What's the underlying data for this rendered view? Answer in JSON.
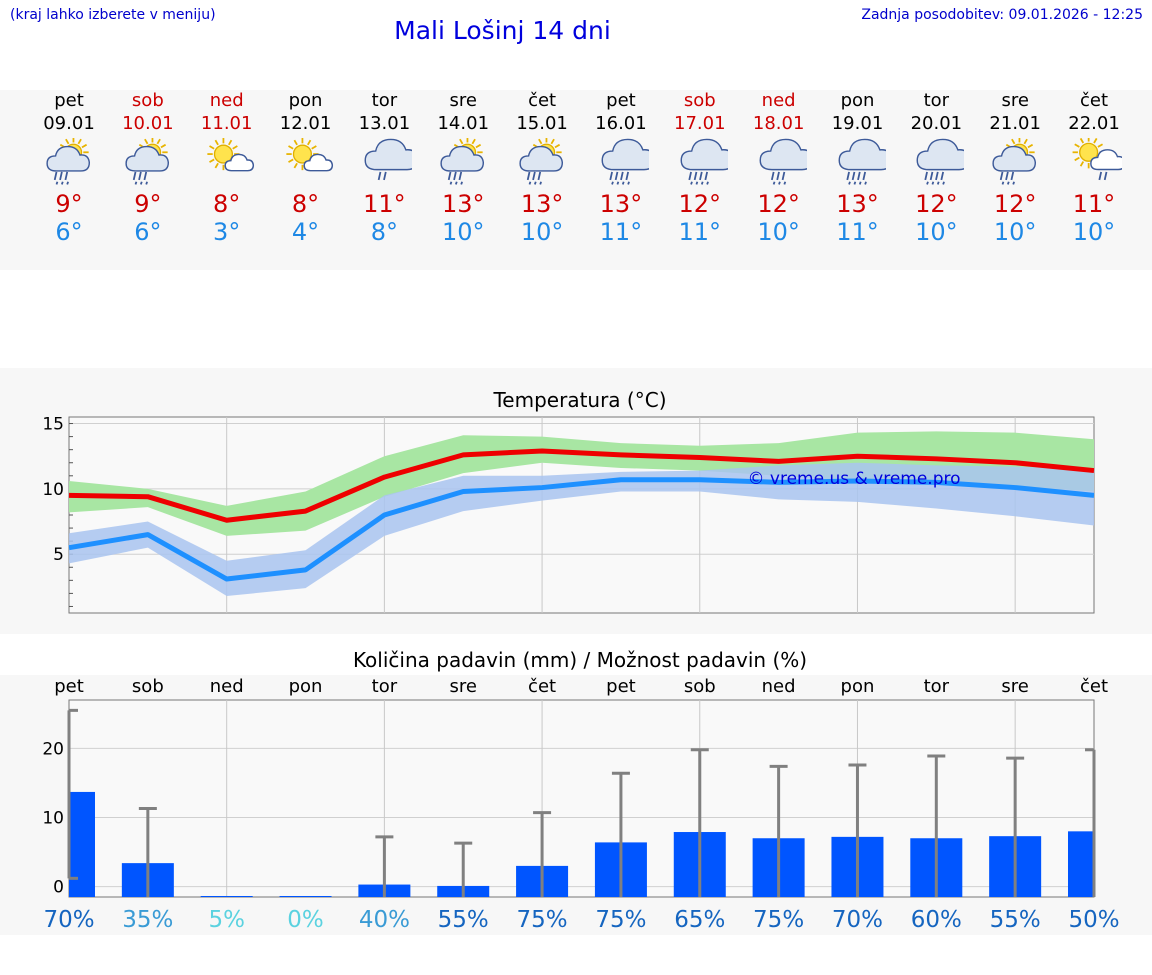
{
  "header": {
    "note": "(kraj lahko izberete v meniju)",
    "title": "Mali Lošinj 14 dni",
    "updated": "Zadnja posodobitev: 09.01.2026 - 12:25"
  },
  "days": [
    {
      "name": "pet",
      "date": "09.01",
      "weekend": false,
      "icon": "sun-cloud-rain-icon",
      "max": "9°",
      "min": "6°"
    },
    {
      "name": "sob",
      "date": "10.01",
      "weekend": true,
      "icon": "sun-cloud-rain-icon",
      "max": "9°",
      "min": "6°"
    },
    {
      "name": "ned",
      "date": "11.01",
      "weekend": true,
      "icon": "sun-small-cloud-icon",
      "max": "8°",
      "min": "3°"
    },
    {
      "name": "pon",
      "date": "12.01",
      "weekend": false,
      "icon": "sun-small-cloud-icon",
      "max": "8°",
      "min": "4°"
    },
    {
      "name": "tor",
      "date": "13.01",
      "weekend": false,
      "icon": "cloud-light-rain-icon",
      "max": "11°",
      "min": "8°"
    },
    {
      "name": "sre",
      "date": "14.01",
      "weekend": false,
      "icon": "sun-cloud-rain-icon",
      "max": "13°",
      "min": "10°"
    },
    {
      "name": "čet",
      "date": "15.01",
      "weekend": false,
      "icon": "sun-cloud-rain-icon",
      "max": "13°",
      "min": "10°"
    },
    {
      "name": "pet",
      "date": "16.01",
      "weekend": false,
      "icon": "cloud-heavy-rain-icon",
      "max": "13°",
      "min": "11°"
    },
    {
      "name": "sob",
      "date": "17.01",
      "weekend": true,
      "icon": "cloud-heavy-rain-icon",
      "max": "12°",
      "min": "11°"
    },
    {
      "name": "ned",
      "date": "18.01",
      "weekend": true,
      "icon": "cloud-rain-icon",
      "max": "12°",
      "min": "10°"
    },
    {
      "name": "pon",
      "date": "19.01",
      "weekend": false,
      "icon": "cloud-heavy-rain-icon",
      "max": "13°",
      "min": "11°"
    },
    {
      "name": "tor",
      "date": "20.01",
      "weekend": false,
      "icon": "cloud-heavy-rain-icon",
      "max": "12°",
      "min": "10°"
    },
    {
      "name": "sre",
      "date": "21.01",
      "weekend": false,
      "icon": "sun-cloud-rain-icon",
      "max": "12°",
      "min": "10°"
    },
    {
      "name": "čet",
      "date": "22.01",
      "weekend": false,
      "icon": "sun-small-cloud-rain-icon",
      "max": "11°",
      "min": "10°"
    }
  ],
  "colors": {
    "max_line": "#ee0000",
    "min_line": "#1e90ff",
    "max_band": "#a8e6a3",
    "min_band": "#a9c4f0",
    "bar": "#0055ff",
    "error_bar": "#808080",
    "weekend": "#cc0000"
  },
  "chart_data": [
    {
      "type": "line",
      "title": "Temperatura (°C)",
      "watermark": "© vreme.us & vreme.pro",
      "ylim": [
        0.5,
        15.5
      ],
      "yticks": [
        5,
        10,
        15
      ],
      "x": [
        0,
        1,
        2,
        3,
        4,
        5,
        6,
        7,
        8,
        9,
        10,
        11,
        12,
        13
      ],
      "series": [
        {
          "name": "max",
          "values": [
            9.5,
            9.4,
            7.6,
            8.3,
            10.9,
            12.6,
            12.9,
            12.6,
            12.4,
            12.1,
            12.5,
            12.3,
            12.0,
            11.4
          ],
          "band_low": [
            8.2,
            8.6,
            6.4,
            6.8,
            9.4,
            11.2,
            12.0,
            11.6,
            11.4,
            11.0,
            10.6,
            10.4,
            10.2,
            9.8
          ],
          "band_high": [
            10.6,
            10.0,
            8.7,
            9.8,
            12.5,
            14.1,
            14.0,
            13.5,
            13.3,
            13.5,
            14.3,
            14.4,
            14.3,
            13.8
          ]
        },
        {
          "name": "min",
          "values": [
            5.5,
            6.5,
            3.1,
            3.8,
            8.0,
            9.8,
            10.1,
            10.7,
            10.7,
            10.5,
            10.6,
            10.5,
            10.1,
            9.5
          ],
          "band_low": [
            4.3,
            5.5,
            1.8,
            2.4,
            6.4,
            8.3,
            9.1,
            9.8,
            9.8,
            9.2,
            9.0,
            8.5,
            7.9,
            7.2
          ],
          "band_high": [
            6.6,
            7.5,
            4.5,
            5.3,
            9.5,
            11.0,
            11.0,
            11.3,
            11.4,
            11.8,
            12.0,
            11.8,
            11.7,
            11.5
          ]
        }
      ]
    },
    {
      "type": "bar",
      "title": "Količina padavin (mm) / Možnost padavin (%)",
      "categories": [
        "pet",
        "sob",
        "ned",
        "pon",
        "tor",
        "sre",
        "čet",
        "pet",
        "sob",
        "ned",
        "pon",
        "tor",
        "sre",
        "čet"
      ],
      "ylim": [
        -1.5,
        27
      ],
      "yticks": [
        0,
        10,
        20
      ],
      "values": [
        13.7,
        3.4,
        0,
        0,
        0.3,
        0.1,
        3.0,
        6.4,
        7.9,
        7.0,
        7.2,
        7.0,
        7.3,
        8.0
      ],
      "error_high": [
        25.5,
        11.3,
        0,
        0,
        7.2,
        6.3,
        10.7,
        16.4,
        19.8,
        17.4,
        17.6,
        18.9,
        18.6,
        19.8
      ],
      "error_low": [
        1.2,
        0,
        0,
        0,
        0,
        0,
        0,
        0,
        0,
        0,
        0,
        0,
        0,
        0
      ],
      "probability": [
        "70%",
        "35%",
        "5%",
        "0%",
        "40%",
        "55%",
        "75%",
        "75%",
        "65%",
        "75%",
        "70%",
        "60%",
        "55%",
        "50%"
      ],
      "probability_colors": [
        "#1565c0",
        "#3a9bd5",
        "#5bd2e0",
        "#5bd2e0",
        "#3a9bd5",
        "#1565c0",
        "#1565c0",
        "#1565c0",
        "#1565c0",
        "#1565c0",
        "#1565c0",
        "#1565c0",
        "#1565c0",
        "#1565c0"
      ]
    }
  ]
}
